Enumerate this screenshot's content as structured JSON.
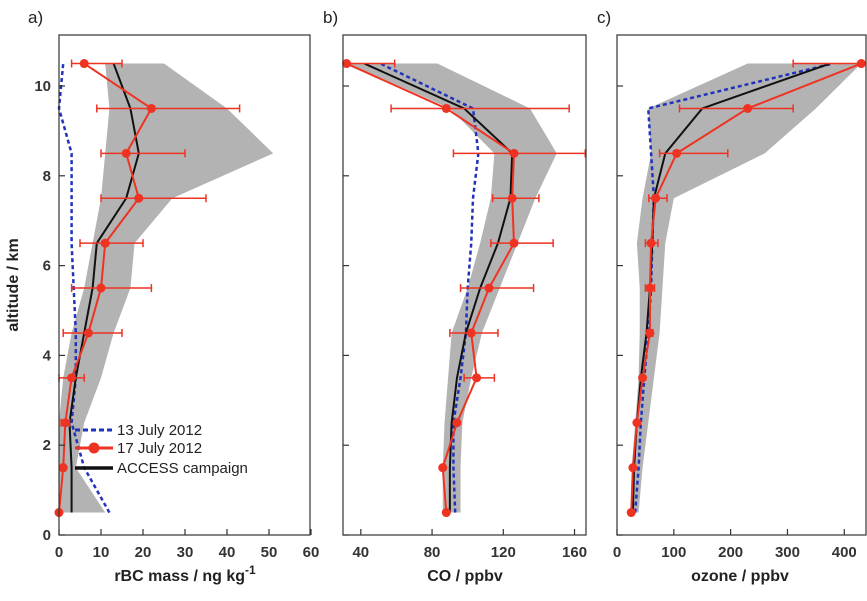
{
  "colors": {
    "band": "#b3b3b3",
    "series_13_july": "#2233bb",
    "series_17_july": "#ee3322",
    "campaign": "#111111"
  },
  "legend": {
    "items": [
      {
        "key": "july13",
        "label": "13 July 2012"
      },
      {
        "key": "july17",
        "label": "17 July 2012"
      },
      {
        "key": "campaign",
        "label": "ACCESS campaign"
      }
    ]
  },
  "chart_data": [
    {
      "type": "line",
      "panel_label": "a)",
      "xlabel": "rBC mass / ng kg",
      "xlabel_superscript": "-1",
      "ylabel": "altitude / km",
      "xlim": [
        0,
        60
      ],
      "ylim": [
        0,
        11
      ],
      "xticks": [
        0,
        10,
        20,
        30,
        40,
        50,
        60
      ],
      "yticks": [
        0,
        2,
        4,
        6,
        8,
        10
      ],
      "band": {
        "y": [
          0.5,
          1.5,
          2.5,
          3.5,
          4.5,
          5.5,
          6.5,
          7.5,
          8.5,
          9.5,
          10.5
        ],
        "low": [
          0,
          0,
          0,
          1,
          3,
          6,
          8,
          10,
          11,
          12,
          11
        ],
        "high": [
          11,
          4,
          6,
          10,
          13,
          17,
          18,
          27,
          51,
          40,
          25
        ]
      },
      "series": [
        {
          "name": "13 July 2012",
          "key": "july13",
          "y": [
            0.5,
            1.5,
            2.5,
            3.5,
            4.5,
            5.5,
            6.5,
            7.5,
            8.5,
            9.5,
            10.5
          ],
          "x": [
            12,
            6,
            3,
            4,
            4,
            3.5,
            3,
            3,
            3,
            0,
            1
          ]
        },
        {
          "name": "17 July 2012",
          "key": "july17",
          "y": [
            0.5,
            1.5,
            2.5,
            3.5,
            4.5,
            5.5,
            6.5,
            7.5,
            8.5,
            9.5,
            10.5
          ],
          "x": [
            0,
            1,
            1.5,
            3,
            7,
            10,
            11,
            19,
            16,
            22,
            6
          ],
          "err_lo": [
            0,
            0.5,
            1,
            3,
            6,
            7,
            6,
            9,
            6,
            13,
            3
          ],
          "err_hi": [
            0,
            0.5,
            1,
            3,
            8,
            12,
            9,
            16,
            14,
            21,
            9
          ]
        },
        {
          "name": "ACCESS campaign",
          "key": "campaign",
          "y": [
            0.5,
            1.5,
            2.5,
            3.5,
            4.5,
            5.5,
            6.5,
            7.5,
            8.5,
            9.5,
            10.5
          ],
          "x": [
            3,
            3,
            2.5,
            4,
            6,
            8,
            9,
            16,
            19,
            17,
            13
          ]
        }
      ]
    },
    {
      "type": "line",
      "panel_label": "b)",
      "xlabel": "CO / ppbv",
      "ylabel": "",
      "xlim": [
        30,
        167
      ],
      "ylim": [
        0,
        11
      ],
      "xticks": [
        40,
        80,
        120,
        160
      ],
      "yticks": [
        0,
        2,
        4,
        6,
        8,
        10
      ],
      "band": {
        "y": [
          0.5,
          1.5,
          2.5,
          3.5,
          4.5,
          5.5,
          6.5,
          7.5,
          8.5,
          9.5,
          10.5
        ],
        "low": [
          86,
          86,
          87,
          89,
          91,
          100,
          107,
          113,
          115,
          90,
          33
        ],
        "high": [
          96,
          96,
          97,
          102,
          108,
          118,
          128,
          138,
          150,
          135,
          83
        ]
      },
      "series": [
        {
          "name": "13 July 2012",
          "key": "july13",
          "y": [
            0.5,
            1.5,
            2.5,
            3.5,
            4.5,
            5.5,
            6.5,
            7.5,
            8.5,
            9.5,
            10.5
          ],
          "x": [
            93,
            92,
            92,
            96,
            99,
            100,
            102,
            103,
            106,
            103,
            51
          ]
        },
        {
          "name": "17 July 2012",
          "key": "july17",
          "y": [
            0.5,
            1.5,
            2.5,
            3.5,
            4.5,
            5.5,
            6.5,
            7.5,
            8.5,
            9.5,
            10.5
          ],
          "x": [
            88,
            86,
            94,
            105,
            102,
            112,
            126,
            125,
            126,
            88,
            32
          ],
          "err_lo": [
            0,
            0,
            0,
            7,
            12,
            16,
            13,
            11,
            34,
            31,
            0
          ],
          "err_hi": [
            0,
            0,
            0,
            10,
            15,
            25,
            22,
            15,
            40,
            69,
            27
          ]
        },
        {
          "name": "ACCESS campaign",
          "key": "campaign",
          "y": [
            0.5,
            1.5,
            2.5,
            3.5,
            4.5,
            5.5,
            6.5,
            7.5,
            8.5,
            9.5,
            10.5
          ],
          "x": [
            90,
            90,
            91,
            94,
            99,
            107,
            117,
            124,
            125,
            98,
            42
          ]
        }
      ]
    },
    {
      "type": "line",
      "panel_label": "c)",
      "xlabel": "ozone / ppbv",
      "ylabel": "",
      "xlim": [
        0,
        440
      ],
      "ylim": [
        0,
        11
      ],
      "xticks": [
        0,
        100,
        200,
        300,
        400
      ],
      "yticks": [
        0,
        2,
        4,
        6,
        8,
        10
      ],
      "band": {
        "y": [
          0.5,
          1.5,
          2.5,
          3.5,
          4.5,
          5.5,
          6.5,
          7.5,
          8.5,
          9.5,
          10.5
        ],
        "low": [
          24,
          26,
          32,
          38,
          40,
          40,
          35,
          45,
          60,
          55,
          230
        ],
        "high": [
          38,
          45,
          55,
          65,
          75,
          80,
          85,
          100,
          260,
          350,
          430
        ]
      },
      "series": [
        {
          "name": "13 July 2012",
          "key": "july13",
          "y": [
            0.5,
            1.5,
            2.5,
            3.5,
            4.5,
            5.5,
            6.5,
            7.5,
            8.5,
            9.5,
            10.5
          ],
          "x": [
            32,
            38,
            42,
            48,
            55,
            60,
            62,
            65,
            60,
            55,
            380
          ]
        },
        {
          "name": "17 July 2012",
          "key": "july17",
          "y": [
            0.5,
            1.5,
            2.5,
            3.5,
            4.5,
            5.5,
            6.5,
            7.5,
            8.5,
            9.5,
            10.5
          ],
          "x": [
            25,
            28,
            35,
            45,
            58,
            58,
            60,
            68,
            105,
            230,
            430
          ],
          "err_lo": [
            0,
            0,
            0,
            0,
            5,
            8,
            10,
            12,
            30,
            120,
            120
          ],
          "err_hi": [
            0,
            0,
            0,
            0,
            5,
            8,
            12,
            20,
            90,
            80,
            0
          ]
        },
        {
          "name": "ACCESS campaign",
          "key": "campaign",
          "y": [
            0.5,
            1.5,
            2.5,
            3.5,
            4.5,
            5.5,
            6.5,
            7.5,
            8.5,
            9.5,
            10.5
          ],
          "x": [
            28,
            30,
            35,
            42,
            52,
            58,
            62,
            65,
            85,
            150,
            375
          ]
        }
      ]
    }
  ]
}
